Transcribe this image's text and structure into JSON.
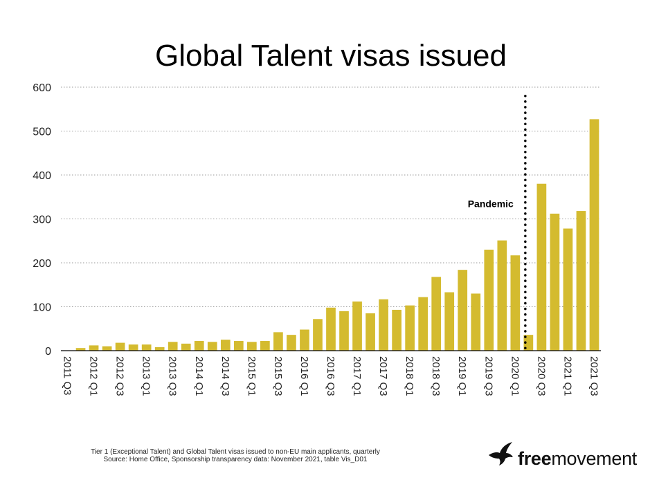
{
  "chart_data": {
    "type": "bar",
    "title": "Global Talent visas issued",
    "xlabel": "",
    "ylabel": "",
    "ylim": [
      0,
      600
    ],
    "yticks": [
      0,
      100,
      200,
      300,
      400,
      500,
      600
    ],
    "grid": true,
    "bar_color": "#d4bb2f",
    "categories": [
      "2011 Q3",
      "2011 Q4",
      "2012 Q1",
      "2012 Q2",
      "2012 Q3",
      "2012 Q4",
      "2013 Q1",
      "2013 Q2",
      "2013 Q3",
      "2013 Q4",
      "2014 Q1",
      "2014 Q2",
      "2014 Q3",
      "2014 Q4",
      "2015 Q1",
      "2015 Q2",
      "2015 Q3",
      "2015 Q4",
      "2016 Q1",
      "2016 Q2",
      "2016 Q3",
      "2016 Q4",
      "2017 Q1",
      "2017 Q2",
      "2017 Q3",
      "2017 Q4",
      "2018 Q1",
      "2018 Q2",
      "2018 Q3",
      "2018 Q4",
      "2019 Q1",
      "2019 Q2",
      "2019 Q3",
      "2019 Q4",
      "2020 Q1",
      "2020 Q2",
      "2020 Q3",
      "2020 Q4",
      "2021 Q1",
      "2021 Q2",
      "2021 Q3"
    ],
    "tick_labels": [
      "2011 Q3",
      "2012 Q1",
      "2012 Q3",
      "2013 Q1",
      "2013 Q3",
      "2014 Q1",
      "2014 Q3",
      "2015 Q1",
      "2015 Q3",
      "2016 Q1",
      "2016 Q3",
      "2017 Q1",
      "2017 Q3",
      "2018 Q1",
      "2018 Q3",
      "2019 Q1",
      "2019 Q3",
      "2020 Q1",
      "2020 Q3",
      "2021 Q1",
      "2021 Q3"
    ],
    "values": [
      0,
      6,
      12,
      10,
      18,
      14,
      14,
      8,
      20,
      16,
      22,
      20,
      25,
      22,
      20,
      22,
      42,
      36,
      48,
      72,
      98,
      90,
      112,
      85,
      117,
      93,
      103,
      122,
      168,
      133,
      184,
      130,
      230,
      251,
      217,
      36,
      380,
      312,
      278,
      318,
      527
    ],
    "annotations": [
      {
        "text": "Pandemic",
        "type": "vertical-dotted-line",
        "between": [
          "2020 Q1",
          "2020 Q2"
        ]
      }
    ]
  },
  "footer": {
    "line1": "Tier 1 (Exceptional Talent) and Global Talent visas issued to non-EU main applicants, quarterly",
    "line2": "Source: Home Office, Sponsorship transparency data: November 2021, table Vis_D01"
  },
  "logo": {
    "part1": "free",
    "part2": "movement",
    "icon": "bird-icon"
  }
}
